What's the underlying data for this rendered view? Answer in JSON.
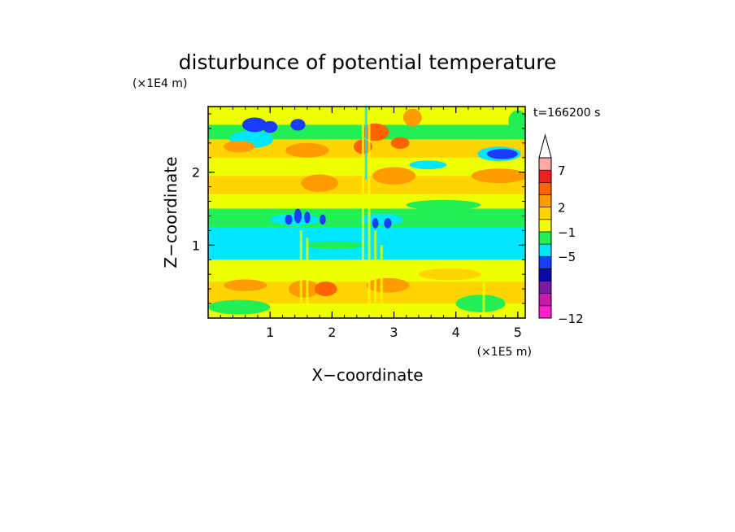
{
  "chart_data": {
    "type": "heatmap",
    "title": "disturbunce of potential temperature",
    "xlabel": "X−coordinate",
    "ylabel": "Z−coordinate",
    "x_unit": "(×1E5 m)",
    "y_unit": "(×1E4 m)",
    "time_label": "t=166200 s",
    "xlim": [
      0,
      5.12
    ],
    "ylim": [
      0,
      2.9
    ],
    "x_ticks": [
      {
        "value": 1,
        "label": "1"
      },
      {
        "value": 2,
        "label": "2"
      },
      {
        "value": 3,
        "label": "3"
      },
      {
        "value": 4,
        "label": "4"
      },
      {
        "value": 5,
        "label": "5"
      }
    ],
    "y_ticks": [
      {
        "value": 1,
        "label": "1"
      },
      {
        "value": 2,
        "label": "2"
      }
    ],
    "colorbar": {
      "levels": [
        "#ff22c8",
        "#c41aa8",
        "#7c1aa8",
        "#0a0aa8",
        "#1a3cff",
        "#00e6ff",
        "#22ee55",
        "#eeff00",
        "#ffd400",
        "#ff9c00",
        "#ff6400",
        "#ee2222",
        "#ffaaa8"
      ],
      "labels": [
        {
          "after_level": 0,
          "text": "−12"
        },
        {
          "after_level": 4,
          "text": "−5"
        },
        {
          "after_level": 6,
          "text": "−1"
        },
        {
          "after_level": 8,
          "text": "2"
        },
        {
          "after_level": 11,
          "text": "7"
        }
      ]
    },
    "bands": [
      {
        "z0": 0.0,
        "z1": 0.2,
        "level": 7
      },
      {
        "z0": 0.2,
        "z1": 0.5,
        "level": 8
      },
      {
        "z0": 0.5,
        "z1": 0.8,
        "level": 7
      },
      {
        "z0": 0.8,
        "z1": 1.25,
        "level": 5
      },
      {
        "z0": 1.25,
        "z1": 1.5,
        "level": 6
      },
      {
        "z0": 1.5,
        "z1": 1.7,
        "level": 7
      },
      {
        "z0": 1.7,
        "z1": 1.95,
        "level": 8
      },
      {
        "z0": 1.95,
        "z1": 2.2,
        "level": 7
      },
      {
        "z0": 2.2,
        "z1": 2.45,
        "level": 8
      },
      {
        "z0": 2.45,
        "z1": 2.65,
        "level": 6
      },
      {
        "z0": 2.65,
        "z1": 2.9,
        "level": 7
      }
    ],
    "anomalies": [
      {
        "x": 0.6,
        "z": 0.45,
        "rx": 0.35,
        "rz": 0.08,
        "level": 9
      },
      {
        "x": 1.55,
        "z": 0.4,
        "rx": 0.25,
        "rz": 0.12,
        "level": 9
      },
      {
        "x": 1.9,
        "z": 0.4,
        "rx": 0.18,
        "rz": 0.1,
        "level": 10
      },
      {
        "x": 2.9,
        "z": 0.45,
        "rx": 0.35,
        "rz": 0.1,
        "level": 9
      },
      {
        "x": 3.9,
        "z": 0.6,
        "rx": 0.5,
        "rz": 0.08,
        "level": 8
      },
      {
        "x": 0.5,
        "z": 0.15,
        "rx": 0.5,
        "rz": 0.1,
        "level": 6
      },
      {
        "x": 4.4,
        "z": 0.2,
        "rx": 0.4,
        "rz": 0.12,
        "level": 6
      },
      {
        "x": 1.4,
        "z": 1.35,
        "rx": 0.4,
        "rz": 0.08,
        "level": 5
      },
      {
        "x": 2.8,
        "z": 1.35,
        "rx": 0.35,
        "rz": 0.08,
        "level": 5
      },
      {
        "x": 1.3,
        "z": 1.35,
        "rx": 0.06,
        "rz": 0.07,
        "level": 4
      },
      {
        "x": 1.45,
        "z": 1.4,
        "rx": 0.06,
        "rz": 0.1,
        "level": 4
      },
      {
        "x": 1.6,
        "z": 1.38,
        "rx": 0.05,
        "rz": 0.08,
        "level": 4
      },
      {
        "x": 1.85,
        "z": 1.35,
        "rx": 0.05,
        "rz": 0.07,
        "level": 4
      },
      {
        "x": 2.7,
        "z": 1.3,
        "rx": 0.05,
        "rz": 0.07,
        "level": 4
      },
      {
        "x": 2.9,
        "z": 1.3,
        "rx": 0.06,
        "rz": 0.07,
        "level": 4
      },
      {
        "x": 0.7,
        "z": 2.45,
        "rx": 0.35,
        "rz": 0.12,
        "level": 5
      },
      {
        "x": 3.55,
        "z": 2.1,
        "rx": 0.3,
        "rz": 0.06,
        "level": 5
      },
      {
        "x": 4.7,
        "z": 2.25,
        "rx": 0.35,
        "rz": 0.1,
        "level": 5
      },
      {
        "x": 0.75,
        "z": 2.65,
        "rx": 0.2,
        "rz": 0.1,
        "level": 4
      },
      {
        "x": 1.0,
        "z": 2.62,
        "rx": 0.12,
        "rz": 0.08,
        "level": 4
      },
      {
        "x": 1.45,
        "z": 2.65,
        "rx": 0.12,
        "rz": 0.08,
        "level": 4
      },
      {
        "x": 4.75,
        "z": 2.25,
        "rx": 0.25,
        "rz": 0.07,
        "level": 4
      },
      {
        "x": 1.8,
        "z": 1.85,
        "rx": 0.3,
        "rz": 0.12,
        "level": 9
      },
      {
        "x": 3.0,
        "z": 1.95,
        "rx": 0.35,
        "rz": 0.12,
        "level": 9
      },
      {
        "x": 4.7,
        "z": 1.95,
        "rx": 0.45,
        "rz": 0.1,
        "level": 9
      },
      {
        "x": 0.5,
        "z": 2.35,
        "rx": 0.25,
        "rz": 0.08,
        "level": 9
      },
      {
        "x": 3.3,
        "z": 2.75,
        "rx": 0.15,
        "rz": 0.12,
        "level": 9
      },
      {
        "x": 1.6,
        "z": 2.3,
        "rx": 0.35,
        "rz": 0.1,
        "level": 9
      },
      {
        "x": 2.7,
        "z": 2.55,
        "rx": 0.22,
        "rz": 0.12,
        "level": 10
      },
      {
        "x": 2.5,
        "z": 2.35,
        "rx": 0.15,
        "rz": 0.1,
        "level": 10
      },
      {
        "x": 3.1,
        "z": 2.4,
        "rx": 0.15,
        "rz": 0.08,
        "level": 10
      },
      {
        "x": 2.05,
        "z": 1.0,
        "rx": 0.5,
        "rz": 0.05,
        "level": 6
      },
      {
        "x": 3.8,
        "z": 1.55,
        "rx": 0.6,
        "rz": 0.07,
        "level": 6
      },
      {
        "x": 5.0,
        "z": 2.7,
        "rx": 0.15,
        "rz": 0.15,
        "level": 6
      }
    ],
    "streaks": [
      {
        "x": 1.5,
        "z0": 0.0,
        "z1": 1.2,
        "level": 7
      },
      {
        "x": 1.6,
        "z0": 0.0,
        "z1": 1.1,
        "level": 7
      },
      {
        "x": 2.5,
        "z0": 0.8,
        "z1": 2.9,
        "level": 7
      },
      {
        "x": 2.6,
        "z0": 0.0,
        "z1": 2.9,
        "level": 7
      },
      {
        "x": 2.7,
        "z0": 0.0,
        "z1": 1.2,
        "level": 7
      },
      {
        "x": 2.8,
        "z0": 0.0,
        "z1": 1.0,
        "level": 7
      },
      {
        "x": 4.45,
        "z0": 0.0,
        "z1": 0.5,
        "level": 7
      },
      {
        "x": 2.55,
        "z0": 1.9,
        "z1": 2.9,
        "level": 5
      }
    ]
  }
}
